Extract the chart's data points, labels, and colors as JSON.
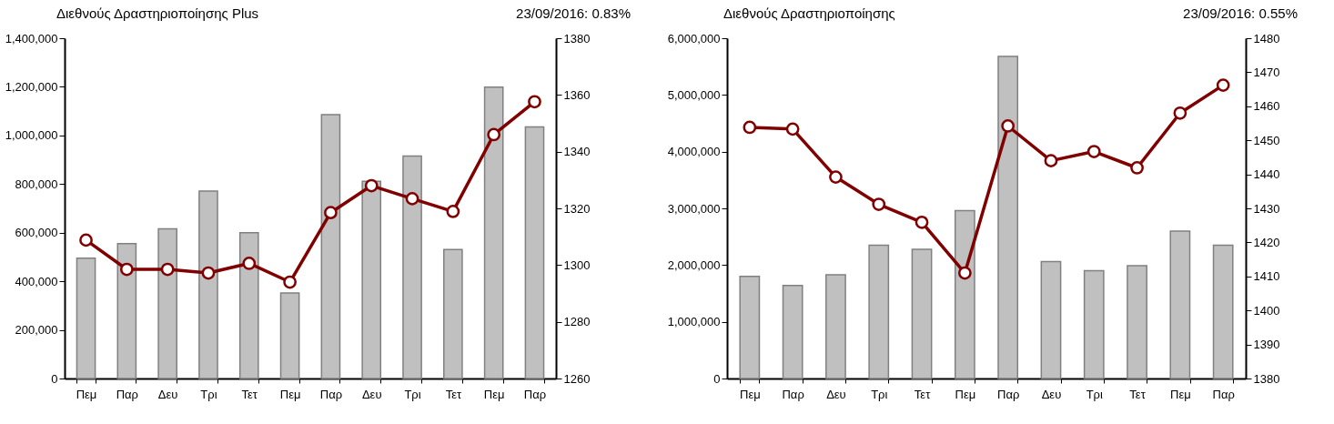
{
  "chart_data": [
    {
      "type": "bar",
      "title": "Διεθνούς Δραστηριοποίησης Plus",
      "subtitle": "23/09/2016: 0.83%",
      "categories": [
        "Πεμ",
        "Παρ",
        "Δευ",
        "Τρι",
        "Τετ",
        "Πεμ",
        "Παρ",
        "Δευ",
        "Τρι",
        "Τετ",
        "Πεμ",
        "Παρ"
      ],
      "series": [
        {
          "color": "#c0c0c0",
          "values": [
            495000,
            555000,
            616000,
            771000,
            600000,
            352000,
            1086000,
            811000,
            915000,
            531000,
            1199000,
            1035000
          ]
        },
        {
          "type": "line",
          "axis": "y2",
          "color": "#800000",
          "values": [
            1308.8,
            1298.5,
            1298.5,
            1297.2,
            1300.6,
            1294,
            1318.5,
            1328,
            1323.4,
            1318.9,
            1346,
            1357.6
          ]
        }
      ],
      "ylim": [
        0,
        1400000
      ],
      "yticks": [
        0,
        {
          "value": 200000,
          "label": "200,000"
        },
        {
          "value": 400000,
          "label": "400,000"
        },
        {
          "value": 600000,
          "label": "600,000"
        },
        {
          "value": 800000,
          "label": "800,000"
        },
        {
          "value": 1000000,
          "label": "1,000,000"
        },
        {
          "value": 1200000,
          "label": "1,200,000"
        },
        {
          "value": 1400000,
          "label": "1,400,000"
        }
      ],
      "y2lim": [
        1260,
        1380
      ],
      "y2ticks": [
        1260,
        1280,
        1300,
        1320,
        1340,
        1360,
        1380
      ],
      "grid": false,
      "marker": "circle",
      "line_style": "solid"
    },
    {
      "type": "bar",
      "title": "Διεθνούς Δραστηριοποίησης",
      "subtitle": "23/09/2016: 0.55%",
      "categories": [
        "Πεμ",
        "Παρ",
        "Δευ",
        "Τρι",
        "Τετ",
        "Πεμ",
        "Παρ",
        "Δευ",
        "Τρι",
        "Τετ",
        "Πεμ",
        "Παρ"
      ],
      "series": [
        {
          "color": "#c0c0c0",
          "values": [
            1800000,
            1640000,
            1830000,
            2350000,
            2280000,
            2960000,
            5680000,
            2060000,
            1900000,
            1990000,
            2600000,
            2350000
          ]
        },
        {
          "type": "line",
          "axis": "y2",
          "color": "#800000",
          "values": [
            1453.8,
            1453.3,
            1439.2,
            1431.2,
            1425.9,
            1411,
            1454.2,
            1444,
            1446.7,
            1441.9,
            1458,
            1466.2
          ]
        }
      ],
      "ylim": [
        0,
        6000000
      ],
      "yticks": [
        0,
        {
          "value": 1000000,
          "label": "1,000,000"
        },
        {
          "value": 2000000,
          "label": "2,000,000"
        },
        {
          "value": 3000000,
          "label": "3,000,000"
        },
        {
          "value": 4000000,
          "label": "4,000,000"
        },
        {
          "value": 5000000,
          "label": "5,000,000"
        },
        {
          "value": 6000000,
          "label": "6,000,000"
        }
      ],
      "y2lim": [
        1380,
        1480
      ],
      "y2ticks": [
        1380,
        1390,
        1400,
        1410,
        1420,
        1430,
        1440,
        1450,
        1460,
        1470,
        1480
      ],
      "grid": false,
      "marker": "circle",
      "line_style": "solid"
    }
  ]
}
